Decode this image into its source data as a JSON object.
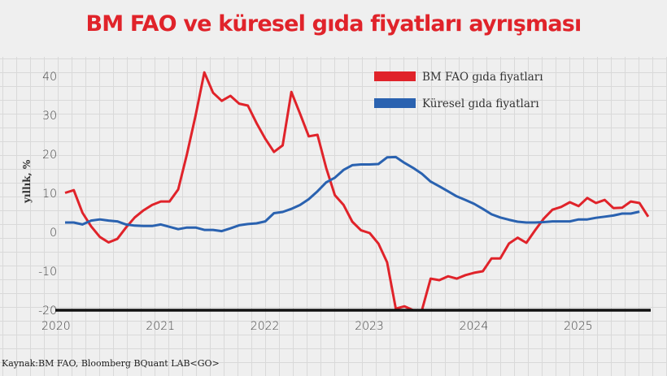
{
  "title": "BM FAO ve küresel gıda fiyatları ayrışması",
  "source": "Kaynak:BM FAO, Bloomberg BQuant LAB<GO>",
  "chart_data": {
    "type": "line",
    "title": "BM FAO ve küresel gıda fiyatları ayrışması",
    "ylabel": "yıllık, %",
    "xlabel": "",
    "ylim": [
      -20,
      40
    ],
    "yticks": [
      "40",
      "30",
      "20",
      "10",
      "0",
      "-10",
      "-20"
    ],
    "ytick_values": [
      40,
      30,
      20,
      10,
      0,
      -10,
      -20
    ],
    "xticks": [
      "2020",
      "2021",
      "2022",
      "2023",
      "2024",
      "2025"
    ],
    "x_start": "2020-01",
    "x_frequency": "monthly",
    "grid": true,
    "legend_position": "top-right",
    "series": [
      {
        "name": "BM FAO gıda fiyatları",
        "color": "#e0232a",
        "values": [
          10.1,
          10.8,
          5,
          1.5,
          -1.2,
          -2.6,
          -1.7,
          1.2,
          3.8,
          5.6,
          7,
          7.9,
          7.9,
          11,
          20,
          30,
          41,
          35.8,
          33.7,
          35,
          33,
          32.5,
          28,
          24,
          20.6,
          22.3,
          36,
          30.4,
          24.6,
          25,
          16.5,
          9.5,
          7,
          2.7,
          0.5,
          -0.2,
          -2.9,
          -7.7,
          -19.6,
          -19,
          -20,
          -20,
          -11.9,
          -12.3,
          -11.3,
          -11.9,
          -11,
          -10.4,
          -10,
          -6.7,
          -6.7,
          -2.9,
          -1.4,
          -2.7,
          0.5,
          3.5,
          5.8,
          6.5,
          7.7,
          6.7,
          8.8,
          7.5,
          8.3,
          6.2,
          6.3,
          7.9,
          7.5,
          4
        ]
      },
      {
        "name": "Küresel gıda fiyatları",
        "color": "#2a62b0",
        "values": [
          2.5,
          2.5,
          2,
          3,
          3.3,
          3,
          2.8,
          2,
          1.7,
          1.6,
          1.6,
          2,
          1.4,
          0.8,
          1.2,
          1.2,
          0.6,
          0.6,
          0.3,
          1,
          1.8,
          2.1,
          2.3,
          2.8,
          4.9,
          5.2,
          6,
          7,
          8.5,
          10.5,
          12.8,
          14,
          16,
          17.2,
          17.4,
          17.4,
          17.5,
          19.2,
          19.3,
          17.8,
          16.5,
          15,
          13,
          11.8,
          10.5,
          9.2,
          8.3,
          7.3,
          6,
          4.6,
          3.8,
          3.2,
          2.7,
          2.5,
          2.5,
          2.6,
          2.8,
          2.8,
          2.8,
          3.3,
          3.3,
          3.7,
          4,
          4.3,
          4.8,
          4.8,
          5.3
        ]
      }
    ]
  }
}
